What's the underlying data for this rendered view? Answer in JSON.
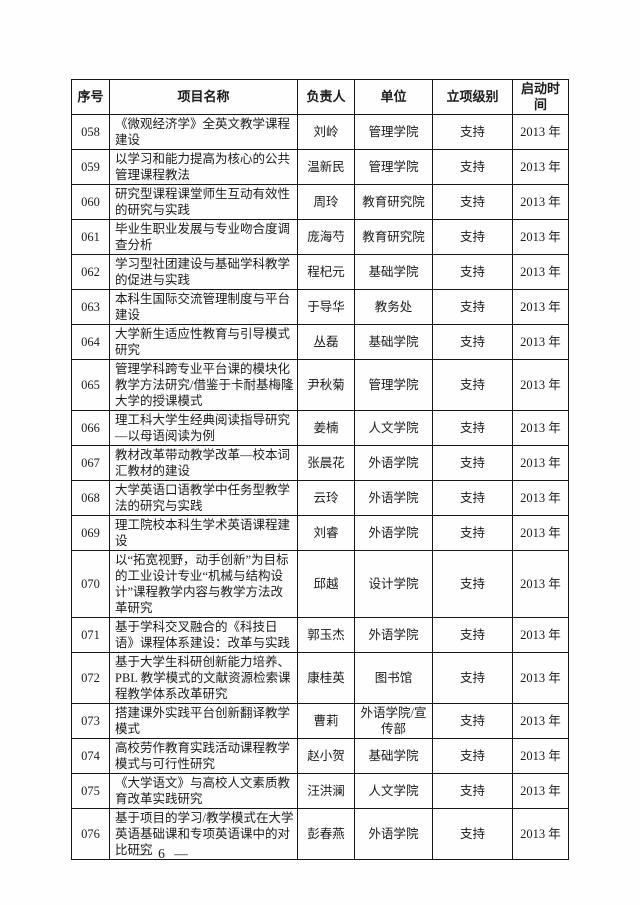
{
  "table": {
    "headers": [
      "序号",
      "项目名称",
      "负责人",
      "单位",
      "立项级别",
      "启动时间"
    ],
    "rows": [
      {
        "no": "058",
        "title": "《微观经济学》全英文教学课程建设",
        "leader": "刘岭",
        "unit": "管理学院",
        "level": "支持",
        "start": "2013 年"
      },
      {
        "no": "059",
        "title": "以学习和能力提高为核心的公共管理课程教法",
        "leader": "温新民",
        "unit": "管理学院",
        "level": "支持",
        "start": "2013 年"
      },
      {
        "no": "060",
        "title": "研究型课程课堂师生互动有效性的研究与实践",
        "leader": "周玲",
        "unit": "教育研究院",
        "level": "支持",
        "start": "2013 年"
      },
      {
        "no": "061",
        "title": "毕业生职业发展与专业吻合度调查分析",
        "leader": "庞海芍",
        "unit": "教育研究院",
        "level": "支持",
        "start": "2013 年"
      },
      {
        "no": "062",
        "title": "学习型社团建设与基础学科教学的促进与实践",
        "leader": "程杞元",
        "unit": "基础学院",
        "level": "支持",
        "start": "2013 年"
      },
      {
        "no": "063",
        "title": "本科生国际交流管理制度与平台建设",
        "leader": "于导华",
        "unit": "教务处",
        "level": "支持",
        "start": "2013 年"
      },
      {
        "no": "064",
        "title": "大学新生适应性教育与引导模式研究",
        "leader": "丛磊",
        "unit": "基础学院",
        "level": "支持",
        "start": "2013 年"
      },
      {
        "no": "065",
        "title": "管理学科跨专业平台课的模块化教学方法研究/借鉴于卡耐基梅隆大学的授课模式",
        "leader": "尹秋菊",
        "unit": "管理学院",
        "level": "支持",
        "start": "2013 年"
      },
      {
        "no": "066",
        "title": "理工科大学生经典阅读指导研究—以母语阅读为例",
        "leader": "姜楠",
        "unit": "人文学院",
        "level": "支持",
        "start": "2013 年"
      },
      {
        "no": "067",
        "title": "教材改革带动教学改革—校本词汇教材的建设",
        "leader": "张晨花",
        "unit": "外语学院",
        "level": "支持",
        "start": "2013 年"
      },
      {
        "no": "068",
        "title": "大学英语口语教学中任务型教学法的研究与实践",
        "leader": "云玲",
        "unit": "外语学院",
        "level": "支持",
        "start": "2013 年"
      },
      {
        "no": "069",
        "title": "理工院校本科生学术英语课程建设",
        "leader": "刘睿",
        "unit": "外语学院",
        "level": "支持",
        "start": "2013 年"
      },
      {
        "no": "070",
        "title": "以“拓宽视野，动手创新”为目标的工业设计专业“机械与结构设计”课程教学内容与教学方法改革研究",
        "leader": "邱越",
        "unit": "设计学院",
        "level": "支持",
        "start": "2013 年"
      },
      {
        "no": "071",
        "title": "基于学科交叉融合的《科技日语》课程体系建设：改革与实践",
        "leader": "郭玉杰",
        "unit": "外语学院",
        "level": "支持",
        "start": "2013 年"
      },
      {
        "no": "072",
        "title": "基于大学生科研创新能力培养、PBL 教学模式的文献资源检索课程教学体系改革研究",
        "leader": "康桂英",
        "unit": "图书馆",
        "level": "支持",
        "start": "2013 年"
      },
      {
        "no": "073",
        "title": "搭建课外实践平台创新翻译教学模式",
        "leader": "曹莉",
        "unit": "外语学院/宣传部",
        "level": "支持",
        "start": "2013 年"
      },
      {
        "no": "074",
        "title": "高校劳作教育实践活动课程教学模式与可行性研究",
        "leader": "赵小贺",
        "unit": "基础学院",
        "level": "支持",
        "start": "2013 年"
      },
      {
        "no": "075",
        "title": "《大学语文》与高校人文素质教育改革实践研究",
        "leader": "汪洪澜",
        "unit": "人文学院",
        "level": "支持",
        "start": "2013 年"
      },
      {
        "no": "076",
        "title": "基于项目的学习/教学模式在大学英语基础课和专项英语课中的对比研究",
        "leader": "彭春燕",
        "unit": "外语学院",
        "level": "支持",
        "start": "2013 年"
      }
    ]
  },
  "footer": {
    "page_number": "— 6 —"
  }
}
